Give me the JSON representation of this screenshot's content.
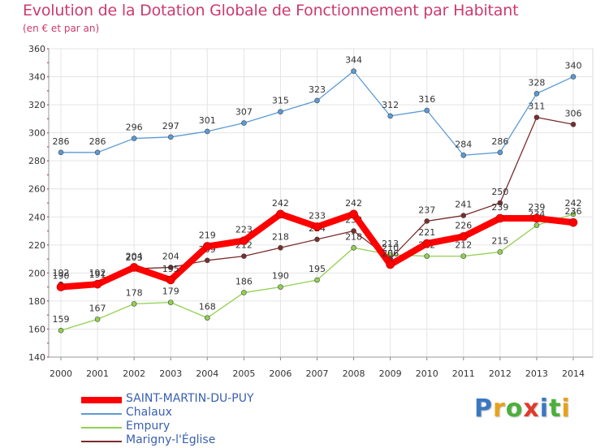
{
  "title": "Evolution de la Dotation Globale de Fonctionnement par Habitant",
  "subtitle": "(en € et par an)",
  "logo": {
    "text": "Proxiti",
    "letter_colors": [
      "#3a78c2",
      "#e8a21a",
      "#4caf3a",
      "#e03a2a",
      "#3a78c2",
      "#4caf3a",
      "#e8a21a"
    ]
  },
  "chart_data": {
    "type": "line",
    "title": "Evolution de la Dotation Globale de Fonctionnement par Habitant",
    "subtitle": "(en € et par an)",
    "xlabel": "",
    "ylabel": "",
    "ylim": [
      140,
      360
    ],
    "yticks": [
      140,
      160,
      180,
      200,
      220,
      240,
      260,
      280,
      300,
      320,
      340,
      360
    ],
    "grid": true,
    "legend_position": "bottom-left",
    "x": [
      "2000",
      "2001",
      "2002",
      "2003",
      "2004",
      "2005",
      "2006",
      "2007",
      "2008",
      "2009",
      "2010",
      "2011",
      "2012",
      "2013",
      "2014"
    ],
    "series": [
      {
        "name": "Chalaux",
        "color": "#5b9bd5",
        "values": [
          286,
          286,
          296,
          297,
          301,
          307,
          315,
          323,
          344,
          312,
          316,
          284,
          286,
          328,
          340
        ]
      },
      {
        "name": "Empury",
        "color": "#92d050",
        "values": [
          159,
          167,
          178,
          179,
          168,
          186,
          190,
          195,
          218,
          213,
          212,
          212,
          215,
          234,
          242
        ]
      },
      {
        "name": "Marigny-l'Église",
        "color": "#7b2c2c",
        "values": [
          192,
          191,
          203,
          204,
          209,
          212,
          218,
          224,
          230,
          210,
          237,
          241,
          250,
          311,
          306
        ]
      },
      {
        "name": "SAINT-MARTIN-DU-PUY",
        "color": "#ff0000",
        "values": [
          190,
          192,
          204,
          195,
          219,
          223,
          242,
          233,
          242,
          206,
          221,
          226,
          239,
          239,
          236
        ]
      }
    ]
  }
}
